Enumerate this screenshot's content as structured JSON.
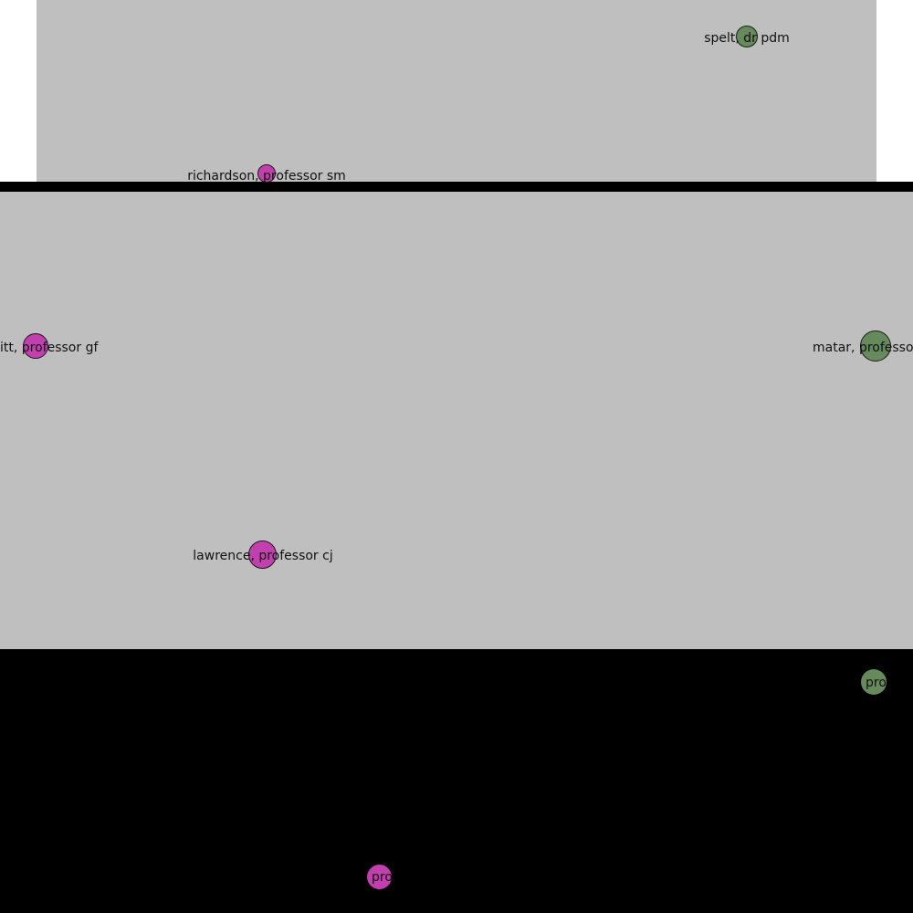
{
  "colors": {
    "panel": "#bfbfbf",
    "band": "#000000",
    "node_magenta": "#c23fae",
    "node_green": "#668a5c"
  },
  "nodes": [
    {
      "id": "spelt",
      "label": "spelt, dr pdm",
      "color": "node_green"
    },
    {
      "id": "richardson",
      "label": "richardson, professor sm",
      "color": "node_magenta"
    },
    {
      "id": "pitt",
      "label": "itt, professor gf",
      "color": "node_magenta"
    },
    {
      "id": "matar",
      "label": "matar, professo",
      "color": "node_green"
    },
    {
      "id": "lawrence",
      "label": "lawrence, professor cj",
      "color": "node_magenta"
    },
    {
      "id": "pro-green",
      "label": "pro",
      "color": "node_green"
    },
    {
      "id": "pro-magenta",
      "label": "pro",
      "color": "node_magenta"
    }
  ]
}
